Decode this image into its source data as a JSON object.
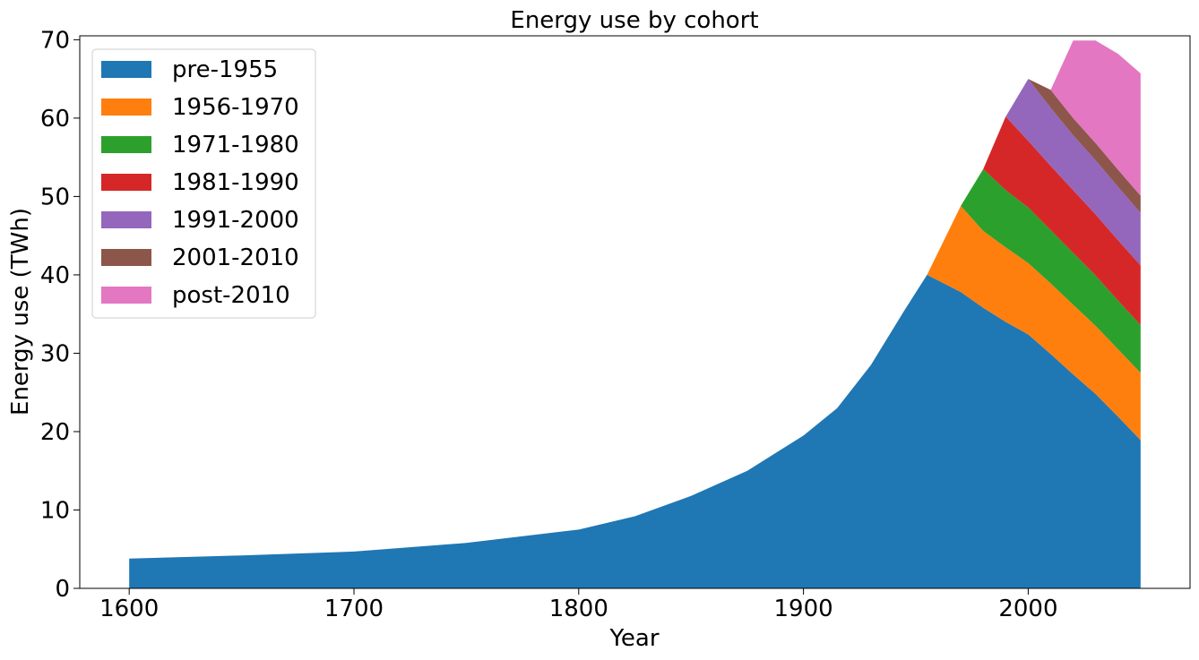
{
  "chart_data": {
    "type": "area",
    "stacked": true,
    "title": "Energy use by cohort",
    "xlabel": "Year",
    "ylabel": "Energy use (TWh)",
    "xlim": [
      1578,
      2072
    ],
    "ylim": [
      0,
      70.5
    ],
    "xticks": [
      1600,
      1700,
      1800,
      1900,
      2000
    ],
    "yticks": [
      0,
      10,
      20,
      30,
      40,
      50,
      60,
      70
    ],
    "grid": false,
    "legend_position": "upper-left",
    "colors": {
      "pre-1955": "#1f77b4",
      "1956-1970": "#ff7f0e",
      "1971-1980": "#2ca02c",
      "1981-1990": "#d62728",
      "1991-2000": "#9467bd",
      "2001-2010": "#8c564b",
      "post-2010": "#e377c2"
    },
    "series": [
      {
        "name": "pre-1955",
        "points": [
          [
            1600,
            3.8
          ],
          [
            1650,
            4.2
          ],
          [
            1700,
            4.7
          ],
          [
            1750,
            5.8
          ],
          [
            1800,
            7.5
          ],
          [
            1825,
            9.2
          ],
          [
            1850,
            11.8
          ],
          [
            1875,
            15.0
          ],
          [
            1900,
            19.5
          ],
          [
            1915,
            23.0
          ],
          [
            1930,
            28.5
          ],
          [
            1945,
            35.5
          ],
          [
            1955,
            40.0
          ],
          [
            1970,
            37.8
          ],
          [
            1980,
            35.8
          ],
          [
            1990,
            34.0
          ],
          [
            2000,
            32.4
          ],
          [
            2010,
            29.9
          ],
          [
            2020,
            27.3
          ],
          [
            2030,
            24.8
          ],
          [
            2040,
            21.9
          ],
          [
            2050,
            18.9
          ]
        ]
      },
      {
        "name": "1956-1970",
        "points": [
          [
            1955,
            0
          ],
          [
            1970,
            11.0
          ],
          [
            1980,
            9.8
          ],
          [
            1990,
            9.5
          ],
          [
            2000,
            9.1
          ],
          [
            2010,
            9.0
          ],
          [
            2020,
            8.9
          ],
          [
            2030,
            8.7
          ],
          [
            2040,
            8.6
          ],
          [
            2050,
            8.6
          ]
        ]
      },
      {
        "name": "1971-1980",
        "points": [
          [
            1970,
            0
          ],
          [
            1980,
            7.9
          ],
          [
            1990,
            7.3
          ],
          [
            2000,
            7.1
          ],
          [
            2010,
            6.8
          ],
          [
            2020,
            6.6
          ],
          [
            2030,
            6.4
          ],
          [
            2040,
            6.2
          ],
          [
            2050,
            6.1
          ]
        ]
      },
      {
        "name": "1981-1990",
        "points": [
          [
            1980,
            0
          ],
          [
            1990,
            9.4
          ],
          [
            2000,
            8.5
          ],
          [
            2010,
            8.2
          ],
          [
            2020,
            8.0
          ],
          [
            2030,
            7.8
          ],
          [
            2040,
            7.7
          ],
          [
            2050,
            7.6
          ]
        ]
      },
      {
        "name": "1991-2000",
        "points": [
          [
            1990,
            0
          ],
          [
            2000,
            7.9
          ],
          [
            2010,
            7.4
          ],
          [
            2020,
            7.0
          ],
          [
            2030,
            6.9
          ],
          [
            2040,
            6.8
          ],
          [
            2050,
            6.7
          ]
        ]
      },
      {
        "name": "2001-2010",
        "points": [
          [
            2000,
            0
          ],
          [
            2010,
            2.3
          ],
          [
            2020,
            2.2
          ],
          [
            2030,
            2.2
          ],
          [
            2040,
            2.2
          ],
          [
            2050,
            2.2
          ]
        ]
      },
      {
        "name": "post-2010",
        "points": [
          [
            2010,
            0
          ],
          [
            2020,
            9.9
          ],
          [
            2030,
            13.1
          ],
          [
            2040,
            14.8
          ],
          [
            2050,
            15.6
          ]
        ]
      }
    ]
  }
}
